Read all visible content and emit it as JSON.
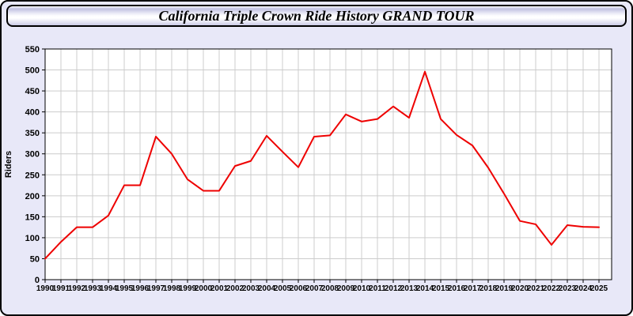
{
  "window": {
    "title": "California Triple Crown Ride History GRAND TOUR"
  },
  "colors": {
    "page_background": "#e8e8f8",
    "frame_border": "#000000",
    "plot_background": "#ffffff",
    "grid": "#cccccc",
    "axis": "#000000",
    "text": "#000000",
    "line": "#ee0000"
  },
  "chart_data": {
    "type": "line",
    "title": "California Triple Crown Ride History GRAND TOUR",
    "xlabel": "",
    "ylabel": "Riders",
    "ylim": [
      0,
      550
    ],
    "ytick_step": 50,
    "grid": true,
    "legend_position": "none",
    "x": [
      1990,
      1991,
      1992,
      1993,
      1994,
      1995,
      1996,
      1997,
      1998,
      1999,
      2000,
      2001,
      2002,
      2003,
      2004,
      2005,
      2006,
      2007,
      2008,
      2009,
      2010,
      2011,
      2012,
      2013,
      2014,
      2015,
      2016,
      2017,
      2018,
      2019,
      2020,
      2021,
      2022,
      2023,
      2024,
      2025
    ],
    "series": [
      {
        "name": "Riders",
        "color": "#ee0000",
        "values": [
          50,
          90,
          125,
          125,
          153,
          225,
          225,
          341,
          300,
          239,
          212,
          212,
          271,
          283,
          343,
          305,
          268,
          341,
          344,
          394,
          377,
          383,
          413,
          386,
          496,
          383,
          345,
          320,
          267,
          205,
          140,
          132,
          83,
          130,
          126,
          125
        ]
      }
    ]
  }
}
